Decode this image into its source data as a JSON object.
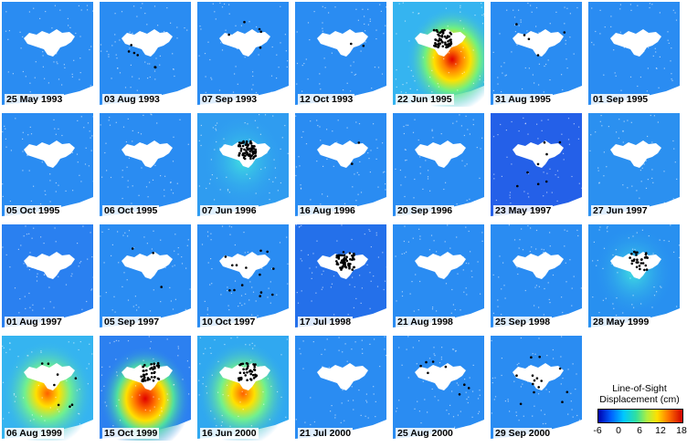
{
  "panels": [
    {
      "date": "25 May 1993",
      "defo": null,
      "shade": "#2a8cf2",
      "quakes": 0
    },
    {
      "date": "03 Aug 1993",
      "defo": null,
      "shade": "#2a8cf2",
      "quakes": 6
    },
    {
      "date": "07 Sep 1993",
      "defo": null,
      "shade": "#2a8cf2",
      "quakes": 5
    },
    {
      "date": "12 Oct 1993",
      "defo": null,
      "shade": "#2a8cf2",
      "quakes": 2
    },
    {
      "date": "22 Jun 1995",
      "defo": "strong-south",
      "shade": "#35b4f0",
      "quakes": 60
    },
    {
      "date": "31 Aug 1995",
      "defo": null,
      "shade": "#2a8cf2",
      "quakes": 5
    },
    {
      "date": "01 Sep 1995",
      "defo": null,
      "shade": "#2a8cf2",
      "quakes": 0
    },
    {
      "date": "05 Oct 1995",
      "defo": null,
      "shade": "#2a8cf2",
      "quakes": 0
    },
    {
      "date": "06 Oct 1995",
      "defo": null,
      "shade": "#2a8cf2",
      "quakes": 0
    },
    {
      "date": "07 Jun 1996",
      "defo": "faint",
      "shade": "#2f9cf0",
      "quakes": 80
    },
    {
      "date": "16 Aug 1996",
      "defo": null,
      "shade": "#2a8cf2",
      "quakes": 2
    },
    {
      "date": "20 Sep 1996",
      "defo": null,
      "shade": "#2a8cf2",
      "quakes": 0
    },
    {
      "date": "23 May 1997",
      "defo": null,
      "shade": "#2460e8",
      "quakes": 8
    },
    {
      "date": "27 Jun 1997",
      "defo": null,
      "shade": "#2b90f0",
      "quakes": 0
    },
    {
      "date": "01 Aug 1997",
      "defo": null,
      "shade": "#2a80f0",
      "quakes": 0
    },
    {
      "date": "05 Sep 1997",
      "defo": null,
      "shade": "#2a8cf2",
      "quakes": 3
    },
    {
      "date": "10 Oct 1997",
      "defo": null,
      "shade": "#2a8cf2",
      "quakes": 14
    },
    {
      "date": "17 Jul 1998",
      "defo": null,
      "shade": "#2470ea",
      "quakes": 60
    },
    {
      "date": "21 Aug 1998",
      "defo": null,
      "shade": "#2a8cf2",
      "quakes": 0
    },
    {
      "date": "25 Sep 1998",
      "defo": null,
      "shade": "#2a8cf2",
      "quakes": 0
    },
    {
      "date": "28 May 1999",
      "defo": "faint",
      "shade": "#2890f0",
      "quakes": 30
    },
    {
      "date": "06 Aug 1999",
      "defo": "medium",
      "shade": "#35b4f0",
      "quakes": 8
    },
    {
      "date": "15 Oct 1999",
      "defo": "strong-center",
      "shade": "#2c80f0",
      "quakes": 45
    },
    {
      "date": "16 Jun 2000",
      "defo": "medium",
      "shade": "#30a8f0",
      "quakes": 40
    },
    {
      "date": "21 Jul 2000",
      "defo": null,
      "shade": "#2a8cf2",
      "quakes": 0
    },
    {
      "date": "25 Aug 2000",
      "defo": null,
      "shade": "#2a8cf2",
      "quakes": 8
    },
    {
      "date": "29 Sep 2000",
      "defo": null,
      "shade": "#2a8cf2",
      "quakes": 14
    }
  ],
  "legend": {
    "title_line1": "Line-of-Sight",
    "title_line2": "Displacement (cm)",
    "ticks": [
      "-6",
      "0",
      "6",
      "12",
      "18"
    ],
    "range": [
      -6,
      18
    ]
  }
}
